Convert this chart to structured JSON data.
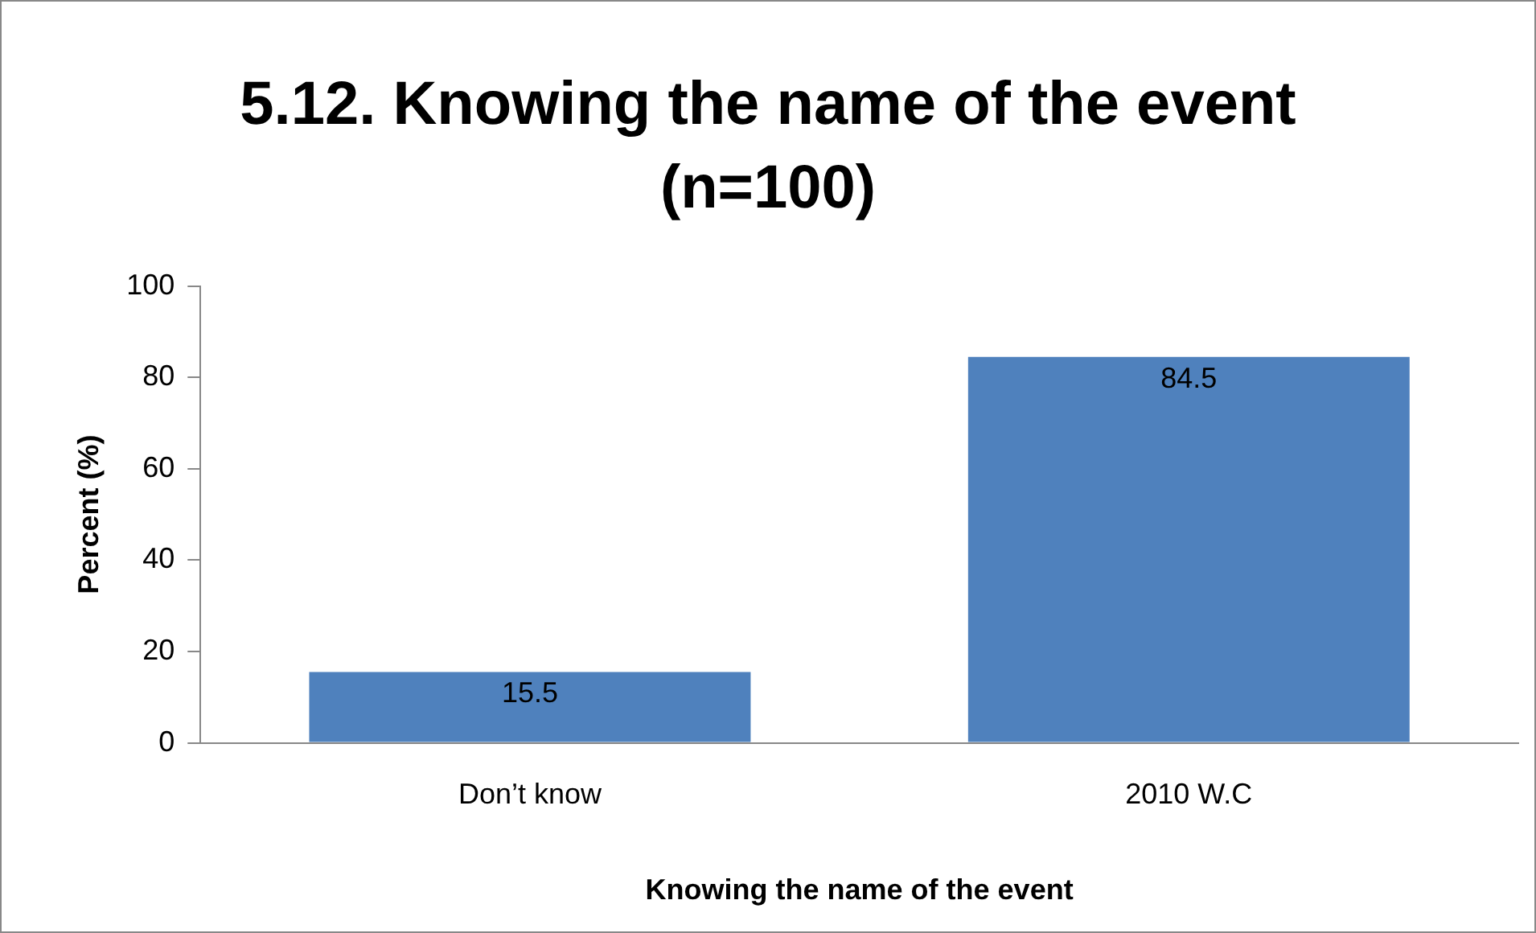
{
  "chart_data": {
    "type": "bar",
    "title": "5.12. Knowing the name of the event (n=100)",
    "xlabel": "Knowing the name of the event",
    "ylabel": "Percent (%)",
    "categories": [
      "Don’t know",
      "2010 W.C"
    ],
    "values": [
      15.5,
      84.5
    ],
    "color": "#4f81bd",
    "ylim": [
      0,
      100
    ],
    "yticks": [
      0,
      20,
      40,
      60,
      80,
      100
    ],
    "grid": false,
    "legend": false,
    "data_labels": true
  }
}
